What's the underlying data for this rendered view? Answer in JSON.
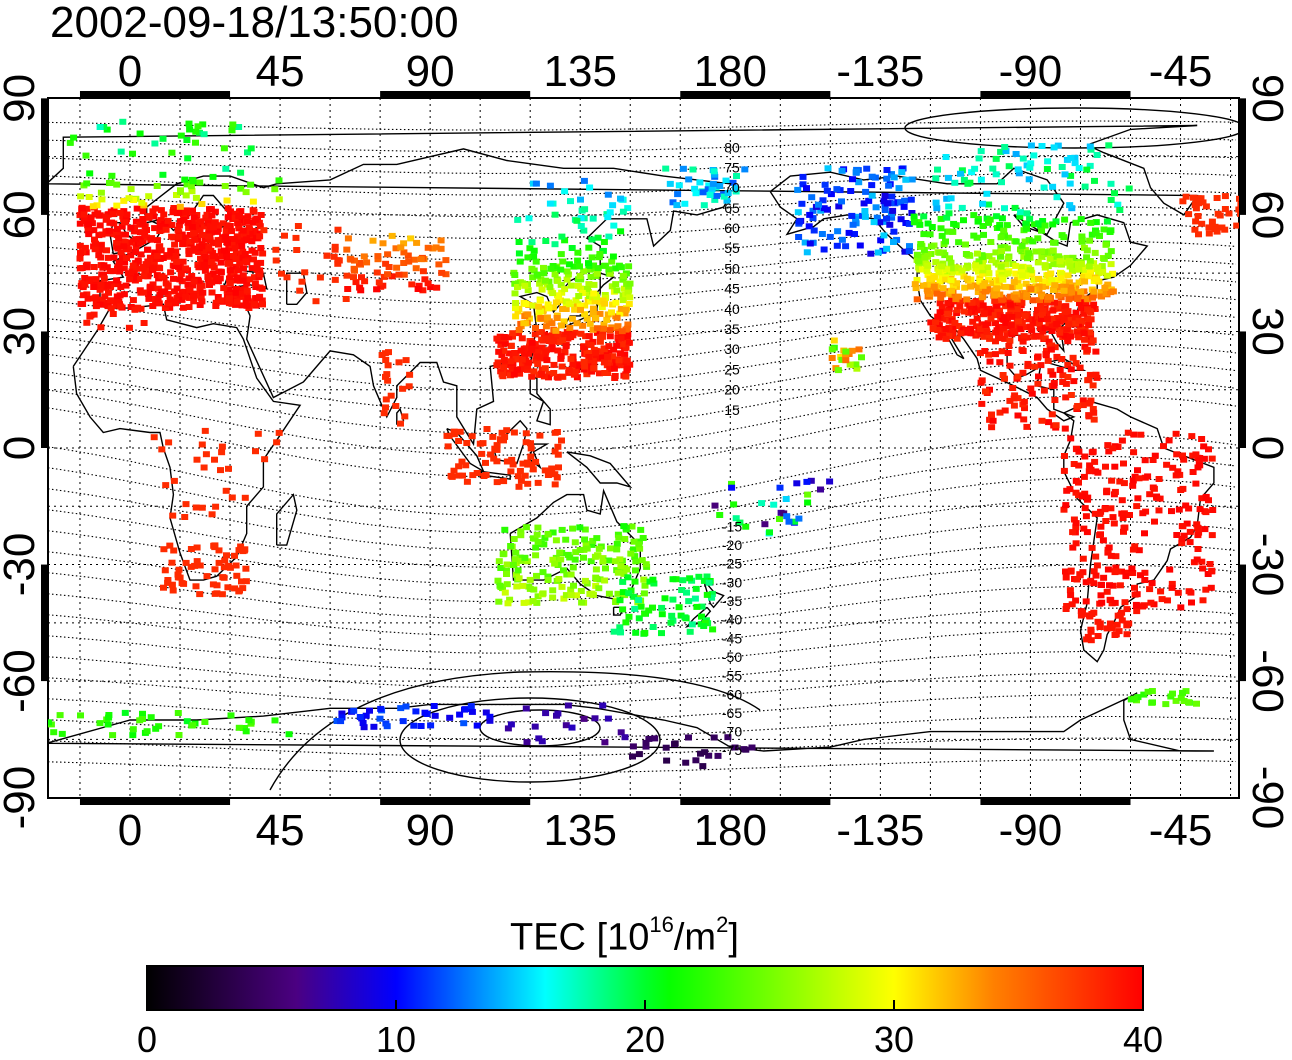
{
  "title": "2002-09-18/13:50:00",
  "map": {
    "lon_ticks": [
      "0",
      "45",
      "90",
      "135",
      "180",
      "-135",
      "-90",
      "-45"
    ],
    "lat_ticks": [
      "90",
      "60",
      "30",
      "0",
      "-30",
      "-60",
      "-90"
    ],
    "contour_labels": [
      "80",
      "75",
      "70",
      "65",
      "60",
      "55",
      "50",
      "45",
      "40",
      "35",
      "30",
      "25",
      "20",
      "15",
      "-15",
      "-20",
      "-25",
      "-30",
      "-35",
      "-40",
      "-45",
      "-50",
      "-55",
      "-60",
      "-65",
      "-70",
      "-75"
    ],
    "grid": true
  },
  "colorbar": {
    "title_prefix": "TEC  [10",
    "title_exp1": "16",
    "title_mid": "/m",
    "title_exp2": "2",
    "title_suffix": "]",
    "ticks": [
      "0",
      "10",
      "20",
      "30",
      "40"
    ],
    "colors": [
      "#000000",
      "#4b0082",
      "#0000ff",
      "#00ffff",
      "#00ff00",
      "#ffff00",
      "#ff8000",
      "#ff0000"
    ]
  },
  "data_regions": [
    {
      "name": "europe",
      "tec": 38
    },
    {
      "name": "north-america",
      "tec": 35
    },
    {
      "name": "east-asia",
      "tec": 38
    },
    {
      "name": "south-america",
      "tec": 39
    },
    {
      "name": "antarctica",
      "tec": 5
    }
  ]
}
